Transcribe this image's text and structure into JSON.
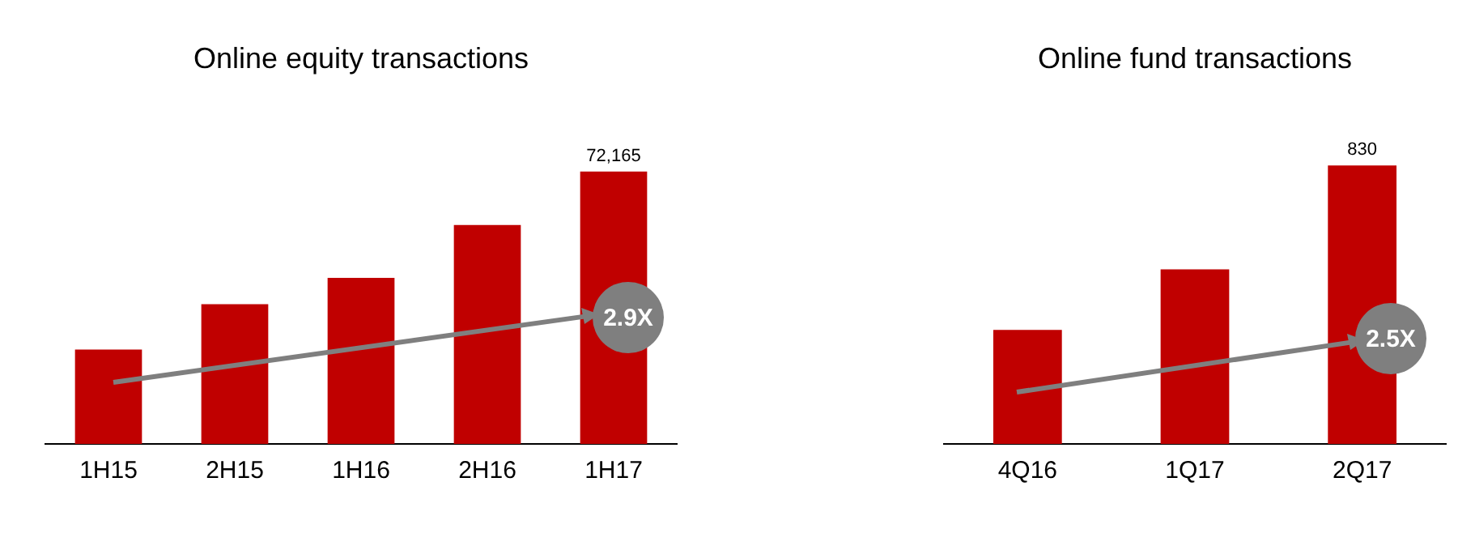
{
  "chart_data": [
    {
      "type": "bar",
      "title": "Online equity transactions",
      "categories": [
        "1H15",
        "2H15",
        "1H16",
        "2H16",
        "1H17"
      ],
      "values": [
        25000,
        37000,
        44000,
        58000,
        72165
      ],
      "value_labels": [
        null,
        null,
        null,
        null,
        "72,165"
      ],
      "color": "#c00000",
      "tick_labels": "x",
      "grid": false,
      "legend": false,
      "annotations": [
        "2.9X"
      ]
    },
    {
      "type": "bar",
      "title": "Online fund transactions",
      "categories": [
        "4Q16",
        "1Q17",
        "2Q17"
      ],
      "values": [
        340,
        520,
        830
      ],
      "value_labels": [
        null,
        null,
        "830"
      ],
      "color": "#c00000",
      "tick_labels": "x",
      "grid": false,
      "legend": false,
      "annotations": [
        "2.5X"
      ]
    }
  ]
}
